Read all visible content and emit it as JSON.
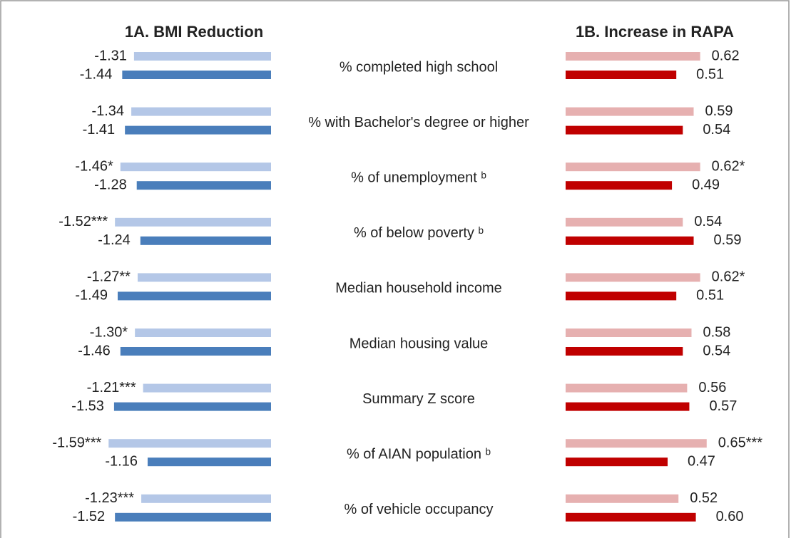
{
  "chart_data": [
    {
      "type": "bar",
      "orientation": "horizontal",
      "title": "1A. BMI Reduction",
      "categories": [
        "% completed high school",
        "% with Bachelor's degree or higher",
        "% of unemployment ᵇ",
        "% of below poverty ᵇ",
        "Median household income",
        "Median housing value",
        "Summary Z score",
        "% of AIAN population ᵇ",
        "% of vehicle occupancy"
      ],
      "xlim": [
        0.2,
        -1.6
      ],
      "series": [
        {
          "color": "#b4c7e7",
          "values": [
            -1.31,
            -1.34,
            -1.46,
            -1.52,
            -1.27,
            -1.3,
            -1.21,
            -1.59,
            -1.23
          ],
          "value_labels": [
            "-1.31",
            "-1.34",
            "-1.46*",
            "-1.52***",
            "-1.27**",
            "-1.30*",
            "-1.21***",
            "-1.59***",
            "-1.23***"
          ]
        },
        {
          "color": "#4a7ebb",
          "values": [
            -1.44,
            -1.41,
            -1.28,
            -1.24,
            -1.49,
            -1.46,
            -1.53,
            -1.16,
            -1.52
          ],
          "value_labels": [
            "-1.44",
            "-1.41",
            "-1.28",
            "-1.24",
            "-1.49",
            "-1.46",
            "-1.53",
            "-1.16",
            "-1.52"
          ]
        }
      ]
    },
    {
      "type": "bar",
      "orientation": "horizontal",
      "title": "1B. Increase in RAPA",
      "xlim": [
        0,
        0.7
      ],
      "series": [
        {
          "color": "#e6b0b0",
          "values": [
            0.62,
            0.59,
            0.62,
            0.54,
            0.62,
            0.58,
            0.56,
            0.65,
            0.52
          ],
          "value_labels": [
            "0.62",
            "0.59",
            "0.62*",
            "0.54",
            "0.62*",
            "0.58",
            "0.56",
            "0.65***",
            "0.52"
          ]
        },
        {
          "color": "#c00000",
          "values": [
            0.51,
            0.54,
            0.49,
            0.59,
            0.51,
            0.54,
            0.57,
            0.47,
            0.6
          ],
          "value_labels": [
            "0.51",
            "0.54",
            "0.49",
            "0.59",
            "0.51",
            "0.54",
            "0.57",
            "0.47",
            "0.60"
          ]
        }
      ]
    }
  ]
}
